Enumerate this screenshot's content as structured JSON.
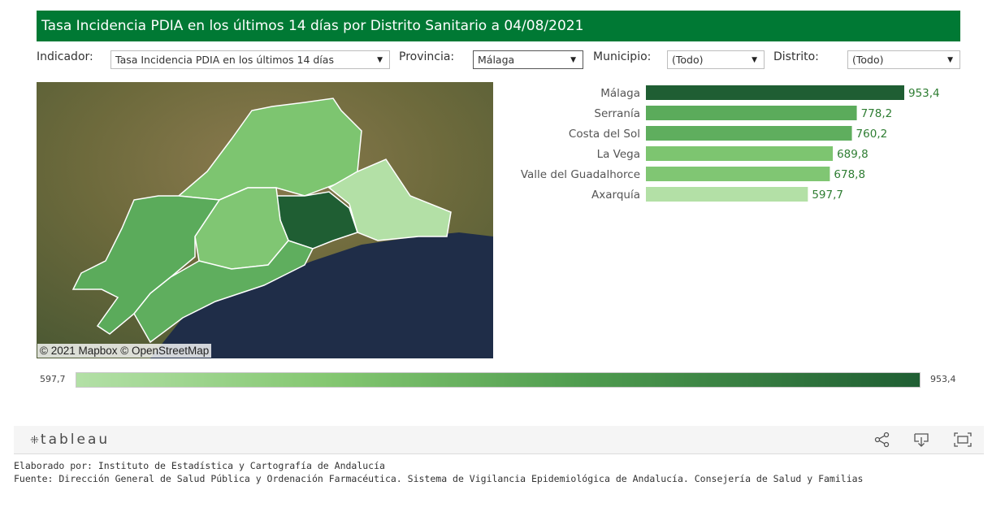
{
  "title": "Tasa Incidencia PDIA en los últimos 14 días por Distrito Sanitario a 04/08/2021",
  "filters": {
    "indicador_label": "Indicador:",
    "indicador_value": "Tasa Incidencia PDIA en los últimos 14 días",
    "provincia_label": "Provincia:",
    "provincia_value": "Málaga",
    "municipio_label": "Municipio:",
    "municipio_value": "(Todo)",
    "distrito_label": "Distrito:",
    "distrito_value": "(Todo)"
  },
  "map": {
    "credit_mapbox": "© 2021 Mapbox",
    "credit_osm": "© OpenStreetMap"
  },
  "chart_data": {
    "type": "bar",
    "orientation": "horizontal",
    "categories": [
      "Málaga",
      "Serranía",
      "Costa del Sol",
      "La Vega",
      "Valle del Guadalhorce",
      "Axarquía"
    ],
    "values": [
      953.4,
      778.2,
      760.2,
      689.8,
      678.8,
      597.7
    ],
    "value_labels": [
      "953,4",
      "778,2",
      "760,2",
      "689,8",
      "678,8",
      "597,7"
    ],
    "colors": [
      "#1f5e33",
      "#5bab5b",
      "#5fae5e",
      "#7dc570",
      "#80c673",
      "#b3e0a6"
    ]
  },
  "legend": {
    "min_label": "597,7",
    "max_label": "953,4",
    "color_low": "#b3e0a6",
    "color_high": "#1f5e33"
  },
  "footer": {
    "logo_text": "tableau",
    "share_icon": "share-icon",
    "download_icon": "download-icon",
    "fullscreen_icon": "fullscreen-icon"
  },
  "credits": {
    "line1": "Elaborado por: Instituto de Estadística y Cartografía de Andalucía",
    "line2": "Fuente: Dirección General de Salud Pública y Ordenación Farmacéutica. Sistema de Vigilancia Epidemiológica de Andalucía. Consejería de Salud y Familias"
  }
}
